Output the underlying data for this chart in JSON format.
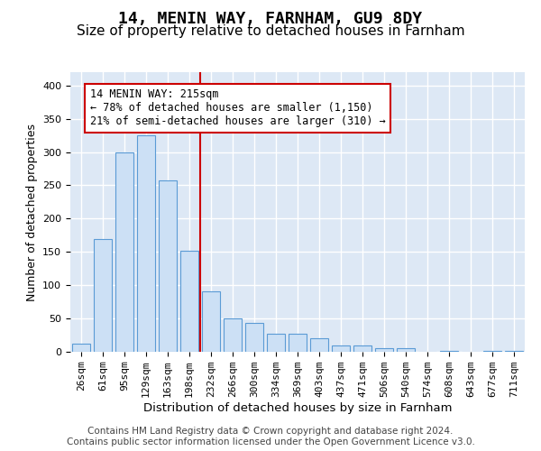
{
  "title1": "14, MENIN WAY, FARNHAM, GU9 8DY",
  "title2": "Size of property relative to detached houses in Farnham",
  "xlabel": "Distribution of detached houses by size in Farnham",
  "ylabel": "Number of detached properties",
  "bar_color": "#cce0f5",
  "bar_edge_color": "#5b9bd5",
  "background_color": "#dde8f5",
  "grid_color": "#ffffff",
  "categories": [
    "26sqm",
    "61sqm",
    "95sqm",
    "129sqm",
    "163sqm",
    "198sqm",
    "232sqm",
    "266sqm",
    "300sqm",
    "334sqm",
    "369sqm",
    "403sqm",
    "437sqm",
    "471sqm",
    "506sqm",
    "540sqm",
    "574sqm",
    "608sqm",
    "643sqm",
    "677sqm",
    "711sqm"
  ],
  "values": [
    12,
    170,
    300,
    325,
    258,
    152,
    91,
    50,
    43,
    27,
    27,
    20,
    10,
    10,
    5,
    5,
    0,
    2,
    0,
    2,
    2
  ],
  "ylim": [
    0,
    420
  ],
  "yticks": [
    0,
    50,
    100,
    150,
    200,
    250,
    300,
    350,
    400
  ],
  "property_line_x": 5.5,
  "annotation_text": "14 MENIN WAY: 215sqm\n← 78% of detached houses are smaller (1,150)\n21% of semi-detached houses are larger (310) →",
  "footer": "Contains HM Land Registry data © Crown copyright and database right 2024.\nContains public sector information licensed under the Open Government Licence v3.0.",
  "vline_color": "#cc0000",
  "annotation_box_edge": "#cc0000",
  "title1_fontsize": 13,
  "title2_fontsize": 11,
  "xlabel_fontsize": 9.5,
  "ylabel_fontsize": 9,
  "tick_fontsize": 8,
  "annotation_fontsize": 8.5,
  "footer_fontsize": 7.5
}
